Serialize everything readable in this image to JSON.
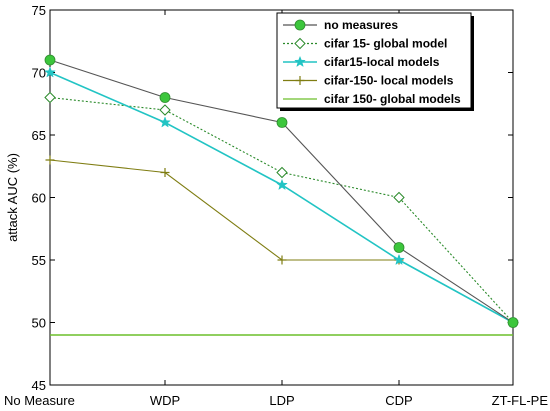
{
  "chart_data": {
    "type": "line",
    "categories": [
      "No Measure",
      "WDP",
      "LDP",
      "CDP",
      "ZT-FL-PE"
    ],
    "ylabel": "attack AUC (%)",
    "xlabel": "",
    "ylim": [
      45,
      75
    ],
    "yticks": [
      45,
      50,
      55,
      60,
      65,
      70,
      75
    ],
    "legend_position": "top-right",
    "series": [
      {
        "name": "no measures",
        "values": [
          71,
          68,
          66,
          56,
          50
        ],
        "color": "#555555",
        "marker": "filled-circle",
        "marker_color": "#3cc63c",
        "dash": "solid"
      },
      {
        "name": "cifar 15- global model",
        "values": [
          68,
          67,
          62,
          60,
          50
        ],
        "color": "#2a8a2a",
        "marker": "open-diamond",
        "dash": "dotted"
      },
      {
        "name": "cifar15-local models",
        "values": [
          70,
          66,
          61,
          55,
          50
        ],
        "color": "#22c4c4",
        "marker": "star",
        "dash": "solid"
      },
      {
        "name": "cifar-150- local models",
        "values": [
          63,
          62,
          55,
          55,
          50
        ],
        "color": "#7f7d12",
        "marker": "plus",
        "dash": "solid"
      },
      {
        "name": "cifar 150- global models",
        "values": [
          49,
          49,
          49,
          49,
          49
        ],
        "color": "#6cbf2a",
        "marker": "none",
        "dash": "solid"
      }
    ]
  }
}
